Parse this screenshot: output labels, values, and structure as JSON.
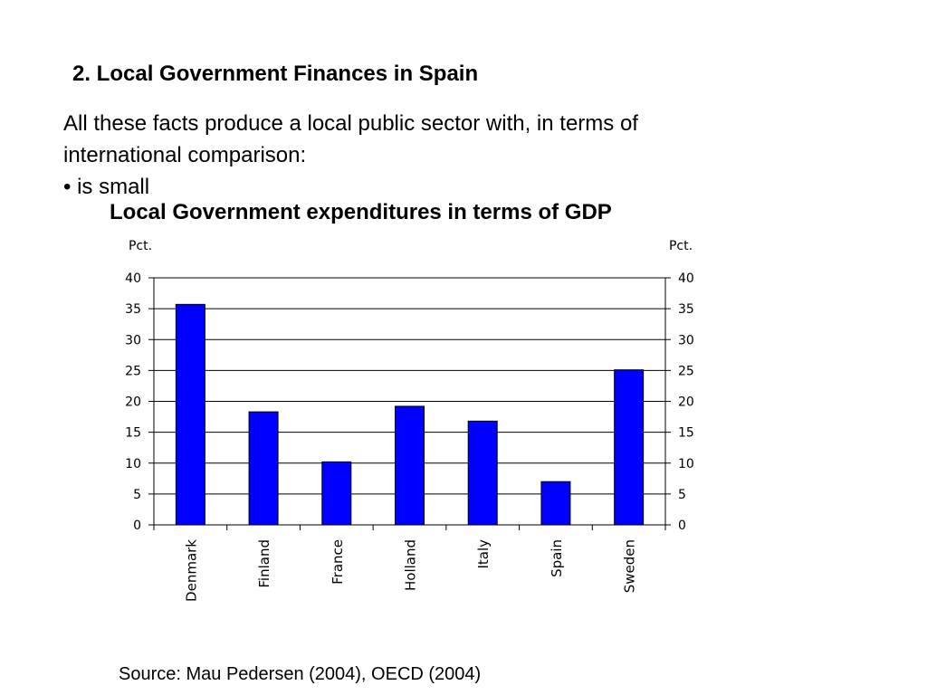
{
  "slide": {
    "heading": "2. Local Government Finances in Spain",
    "body_line1": "All these facts produce a local public sector with, in terms of",
    "body_line2": "international comparison:",
    "bullet": "• is small",
    "source": "Source: Mau Pedersen (2004), OECD (2004)"
  },
  "chart_data": {
    "type": "bar",
    "title": "Local Government expenditures in terms of GDP",
    "ylabel_left": "Pct.",
    "ylabel_right": "Pct.",
    "categories": [
      "Denmark",
      "Finland",
      "France",
      "Holland",
      "Italy",
      "Spain",
      "Sweden"
    ],
    "values": [
      35.7,
      18.3,
      10.2,
      19.2,
      16.8,
      7.0,
      25.1
    ],
    "ylim": [
      0,
      40
    ],
    "yticks": [
      0,
      5,
      10,
      15,
      20,
      25,
      30,
      35,
      40
    ],
    "grid": true,
    "bar_color": "#0000ff",
    "bar_outline": "#000000"
  }
}
